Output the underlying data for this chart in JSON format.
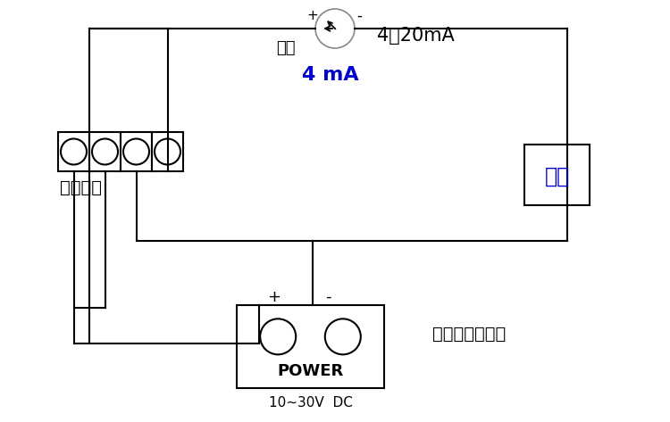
{
  "bg_color": "#ffffff",
  "line_color": "#000000",
  "blue_color": "#0000CD",
  "label_fengxiang": "风向",
  "label_4_20mA": "4～20mA",
  "label_4mA": "4 mA",
  "label_beifeng": "北风",
  "label_棕黑蓝绿": "棕黑蓝绿",
  "label_power": "POWER",
  "label_voltage": "10~30V  DC",
  "label_四线制": "四线制电流输出",
  "label_plus_top": "+",
  "label_minus_top": "-",
  "label_plus_bot": "+",
  "label_minus_bot": "-"
}
